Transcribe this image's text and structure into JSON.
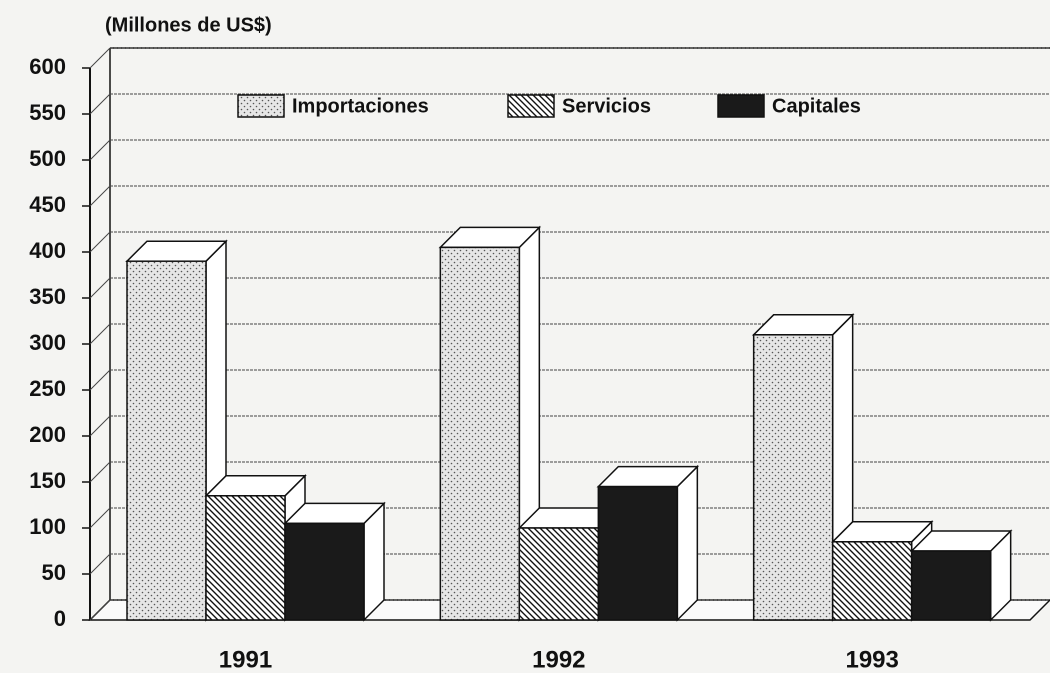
{
  "chart_data": {
    "type": "bar3d",
    "y_axis_label": "(Millones de US$)",
    "categories": [
      "1991",
      "1992",
      "1993"
    ],
    "series": [
      {
        "name": "Importaciones",
        "color": "#e6e6e6",
        "pattern": "dots",
        "values": [
          390,
          405,
          310
        ]
      },
      {
        "name": "Servicios",
        "color": "#ffffff",
        "pattern": "hatch",
        "values": [
          135,
          100,
          85
        ]
      },
      {
        "name": "Capitales",
        "color": "#1a1a1a",
        "pattern": "solid",
        "values": [
          105,
          145,
          75
        ]
      }
    ],
    "ylim": [
      0,
      600
    ],
    "yticks": [
      0,
      50,
      100,
      150,
      200,
      250,
      300,
      350,
      400,
      450,
      500,
      550,
      600
    ],
    "grid": true,
    "legend": "top"
  }
}
